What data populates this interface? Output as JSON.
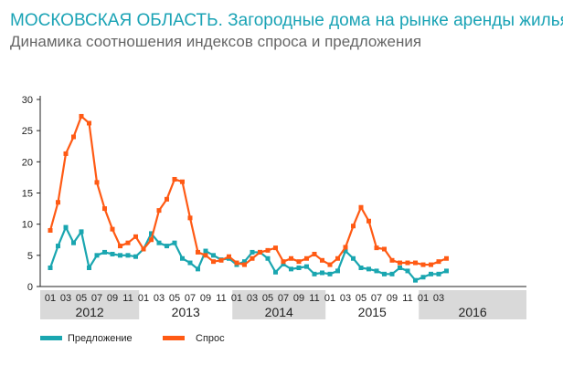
{
  "header": {
    "title": "МОСКОВСКАЯ ОБЛАСТЬ. Загородные дома на рынке аренды жилья.",
    "subtitle": "Динамика соотношения индексов спроса и предложения"
  },
  "chart_data": {
    "type": "line",
    "title": "МОСКОВСКАЯ ОБЛАСТЬ. Загородные дома на рынке аренды жилья.",
    "subtitle": "Динамика соотношения индексов спроса и предложения",
    "xlabel": "",
    "ylabel": "",
    "ylim": [
      0,
      30
    ],
    "yticks": [
      0,
      5,
      10,
      15,
      20,
      25,
      30
    ],
    "grid": false,
    "legend_position": "bottom-left",
    "month_tick_labels": [
      "01",
      "03",
      "05",
      "07",
      "09",
      "11",
      "01",
      "03",
      "05",
      "07",
      "09",
      "11",
      "01",
      "03",
      "05",
      "07",
      "09",
      "11",
      "01",
      "03",
      "05",
      "07",
      "09",
      "11",
      "01",
      "03"
    ],
    "year_groups": [
      {
        "label": "2012",
        "shaded": true
      },
      {
        "label": "2013",
        "shaded": false
      },
      {
        "label": "2014",
        "shaded": true
      },
      {
        "label": "2015",
        "shaded": false
      },
      {
        "label": "2016",
        "shaded": true,
        "months": 3
      }
    ],
    "x": [
      "2012-01",
      "2012-02",
      "2012-03",
      "2012-04",
      "2012-05",
      "2012-06",
      "2012-07",
      "2012-08",
      "2012-09",
      "2012-10",
      "2012-11",
      "2012-12",
      "2013-01",
      "2013-02",
      "2013-03",
      "2013-04",
      "2013-05",
      "2013-06",
      "2013-07",
      "2013-08",
      "2013-09",
      "2013-10",
      "2013-11",
      "2013-12",
      "2014-01",
      "2014-02",
      "2014-03",
      "2014-04",
      "2014-05",
      "2014-06",
      "2014-07",
      "2014-08",
      "2014-09",
      "2014-10",
      "2014-11",
      "2014-12",
      "2015-01",
      "2015-02",
      "2015-03",
      "2015-04",
      "2015-05",
      "2015-06",
      "2015-07",
      "2015-08",
      "2015-09",
      "2015-10",
      "2015-11",
      "2015-12",
      "2016-01",
      "2016-02",
      "2016-03",
      "2016-04"
    ],
    "series": [
      {
        "name": "Предложение",
        "color": "#1aa6b0",
        "values": [
          3.0,
          6.5,
          9.5,
          7.0,
          8.8,
          3.0,
          5.0,
          5.5,
          5.2,
          5.0,
          5.0,
          4.8,
          6.0,
          8.5,
          7.0,
          6.5,
          7.0,
          4.5,
          3.8,
          2.8,
          5.7,
          5.0,
          4.3,
          4.5,
          3.5,
          4.0,
          5.5,
          5.5,
          4.5,
          2.3,
          3.6,
          2.8,
          3.0,
          3.2,
          2.0,
          2.2,
          2.0,
          2.5,
          5.7,
          4.5,
          3.0,
          2.8,
          2.5,
          2.0,
          2.0,
          3.0,
          2.5,
          1.0,
          1.5,
          2.0,
          2.0,
          2.5
        ]
      },
      {
        "name": "Спрос",
        "color": "#ff5a14",
        "values": [
          9.0,
          13.5,
          21.3,
          24.0,
          27.3,
          26.2,
          16.7,
          12.5,
          9.2,
          6.5,
          7.0,
          8.0,
          6.0,
          7.5,
          12.2,
          14.0,
          17.2,
          16.8,
          11.0,
          5.5,
          5.0,
          4.0,
          4.2,
          4.8,
          3.8,
          3.5,
          4.5,
          5.5,
          5.8,
          6.2,
          4.0,
          4.5,
          4.0,
          4.5,
          5.2,
          4.2,
          3.5,
          4.5,
          6.3,
          9.7,
          12.7,
          10.5,
          6.2,
          6.0,
          4.2,
          3.8,
          3.8,
          3.8,
          3.5,
          3.5,
          4.0,
          4.5
        ]
      }
    ]
  },
  "legend": [
    {
      "label": "Предложение",
      "color": "#1aa6b0"
    },
    {
      "label": "Спрос",
      "color": "#ff5a14"
    }
  ]
}
